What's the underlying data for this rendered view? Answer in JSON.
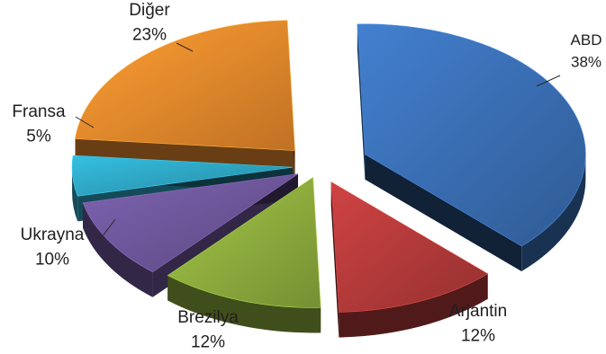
{
  "chart_data": {
    "type": "pie",
    "style": "3d-exploded",
    "title": "",
    "legend": "none",
    "categories": [
      "ABD",
      "Arjantin",
      "Brezilya",
      "Ukrayna",
      "Fransa",
      "Diğer"
    ],
    "values": [
      38,
      12,
      12,
      10,
      5,
      23
    ],
    "value_labels": [
      "38%",
      "12%",
      "12%",
      "10%",
      "5%",
      "23%"
    ],
    "unit": "%"
  },
  "colors": {
    "ABD": "#3a6fb5",
    "Arjantin": "#b53a3a",
    "Brezilya": "#8fae3e",
    "Ukrayna": "#6e579b",
    "Fransa": "#2ea6c4",
    "Diğer": "#ea8a2c"
  }
}
